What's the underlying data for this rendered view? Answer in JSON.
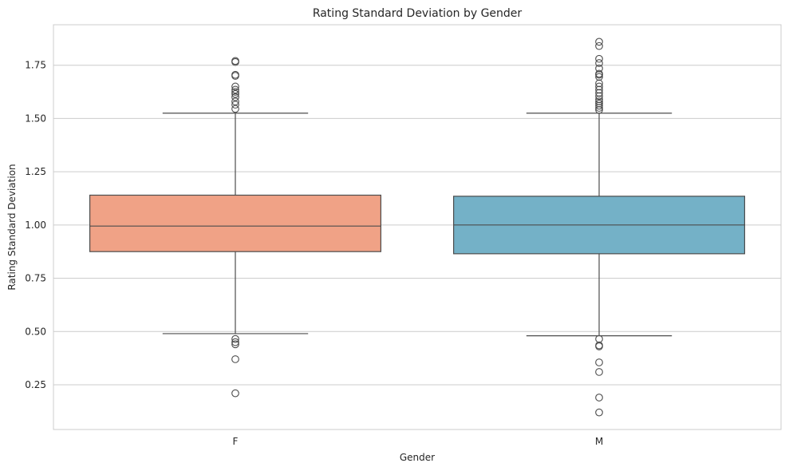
{
  "chart_data": {
    "type": "box",
    "title": "Rating Standard Deviation by Gender",
    "xlabel": "Gender",
    "ylabel": "Rating Standard Deviation",
    "ylim": [
      0.04,
      1.94
    ],
    "yticks": [
      0.25,
      0.5,
      0.75,
      1.0,
      1.25,
      1.5,
      1.75
    ],
    "ytick_labels": [
      "0.25",
      "0.50",
      "0.75",
      "1.00",
      "1.25",
      "1.50",
      "1.75"
    ],
    "grid": true,
    "categories": [
      "F",
      "M"
    ],
    "colors": [
      "#f0a286",
      "#74b1c7"
    ],
    "boxes": [
      {
        "category": "F",
        "whisker_low": 0.49,
        "q1": 0.875,
        "median": 0.995,
        "q3": 1.14,
        "whisker_high": 1.525,
        "outliers": [
          1.77,
          1.765,
          1.705,
          1.7,
          1.65,
          1.635,
          1.625,
          1.615,
          1.6,
          1.58,
          1.565,
          1.545,
          0.465,
          0.45,
          0.44,
          0.37,
          0.21
        ]
      },
      {
        "category": "M",
        "whisker_low": 0.48,
        "q1": 0.865,
        "median": 1.0,
        "q3": 1.135,
        "whisker_high": 1.525,
        "outliers": [
          1.86,
          1.84,
          1.78,
          1.76,
          1.735,
          1.71,
          1.705,
          1.695,
          1.665,
          1.65,
          1.635,
          1.62,
          1.605,
          1.59,
          1.58,
          1.57,
          1.56,
          1.55,
          1.54,
          0.465,
          0.435,
          0.43,
          0.355,
          0.31,
          0.19,
          0.12
        ]
      }
    ]
  }
}
